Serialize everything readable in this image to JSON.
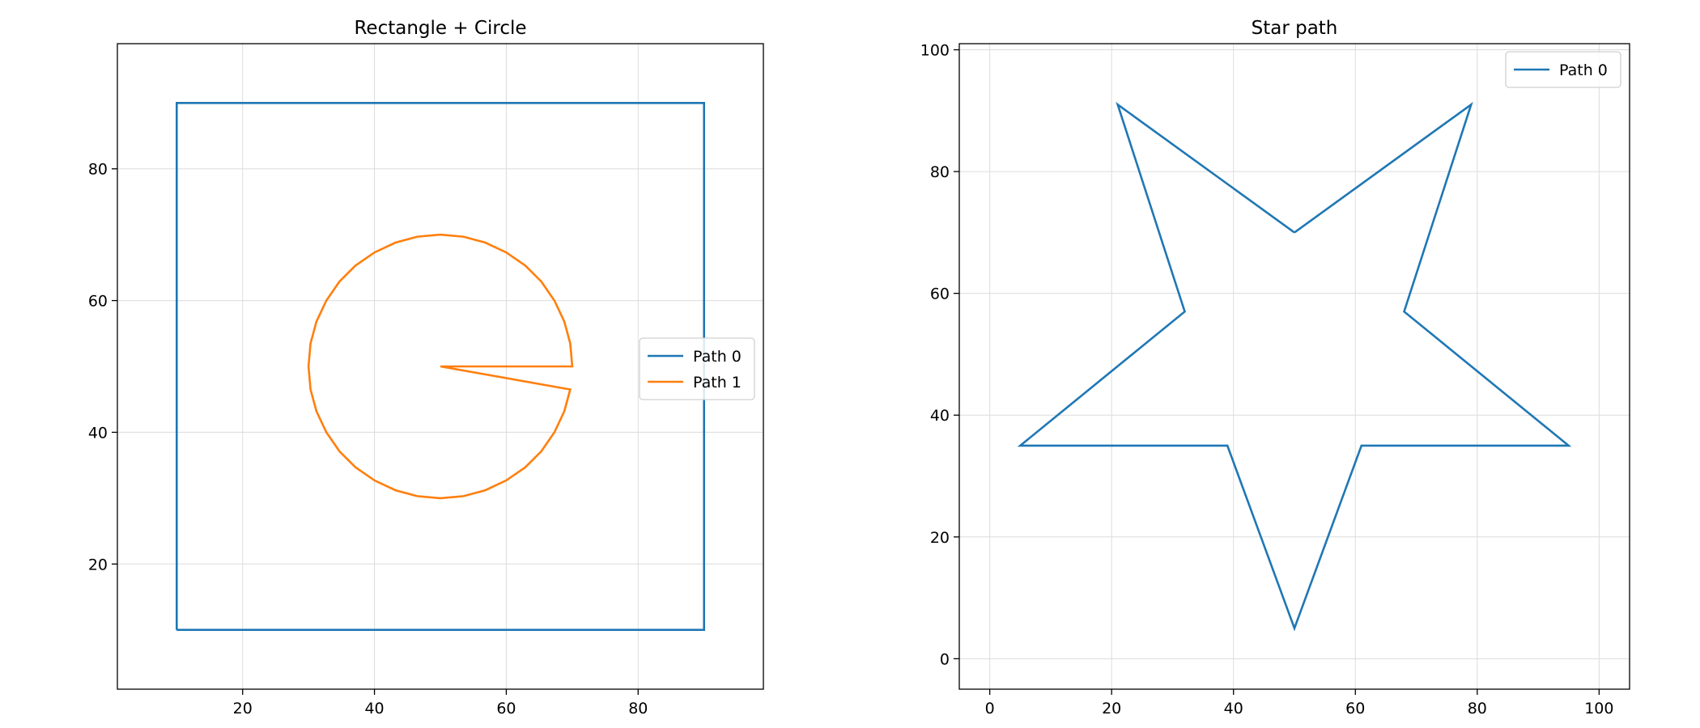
{
  "chart_data": [
    {
      "type": "line",
      "title": "Rectangle + Circle",
      "xlabel": "",
      "ylabel": "",
      "xlim": [
        1,
        99
      ],
      "ylim": [
        1,
        99
      ],
      "xticks": [
        20,
        40,
        60,
        80
      ],
      "yticks": [
        20,
        40,
        60,
        80
      ],
      "grid": true,
      "legend": "center-right",
      "series": [
        {
          "name": "Path 0",
          "color": "#1f77b4",
          "x": [
            10,
            90,
            90,
            10,
            10
          ],
          "y": [
            10,
            10,
            90,
            90,
            10
          ]
        },
        {
          "name": "Path 1",
          "color": "#ff7f0e",
          "x": [
            50,
            70,
            69.7,
            68.8,
            67.3,
            65.3,
            62.9,
            60.0,
            56.8,
            53.5,
            50.0,
            46.5,
            43.2,
            40.0,
            37.1,
            34.7,
            32.7,
            31.2,
            30.3,
            30.0,
            30.3,
            31.2,
            32.7,
            34.7,
            37.1,
            40.0,
            43.2,
            46.5,
            50.0,
            53.5,
            56.8,
            60.0,
            62.9,
            65.3,
            67.3,
            68.8,
            69.7,
            50
          ],
          "y": [
            50,
            50,
            53.5,
            56.8,
            60.0,
            62.9,
            65.3,
            67.3,
            68.8,
            69.7,
            70.0,
            69.7,
            68.8,
            67.3,
            65.3,
            62.9,
            60.0,
            56.8,
            53.5,
            50.0,
            46.5,
            43.2,
            40.0,
            37.1,
            34.7,
            32.7,
            31.2,
            30.3,
            30.0,
            30.3,
            31.2,
            32.7,
            34.7,
            37.1,
            40.0,
            43.2,
            46.5,
            50
          ]
        }
      ]
    },
    {
      "type": "line",
      "title": "Star path",
      "xlabel": "",
      "ylabel": "",
      "xlim": [
        -5,
        105
      ],
      "ylim": [
        -5,
        101
      ],
      "xticks": [
        0,
        20,
        40,
        60,
        80,
        100
      ],
      "yticks": [
        0,
        20,
        40,
        60,
        80,
        100
      ],
      "grid": true,
      "legend": "top-right",
      "series": [
        {
          "name": "Path 0",
          "color": "#1f77b4",
          "x": [
            50,
            21,
            32,
            5,
            39,
            50,
            61,
            95,
            68,
            79,
            50
          ],
          "y": [
            70,
            91,
            57,
            35,
            35,
            5,
            35,
            35,
            57,
            91,
            70
          ]
        }
      ]
    }
  ]
}
